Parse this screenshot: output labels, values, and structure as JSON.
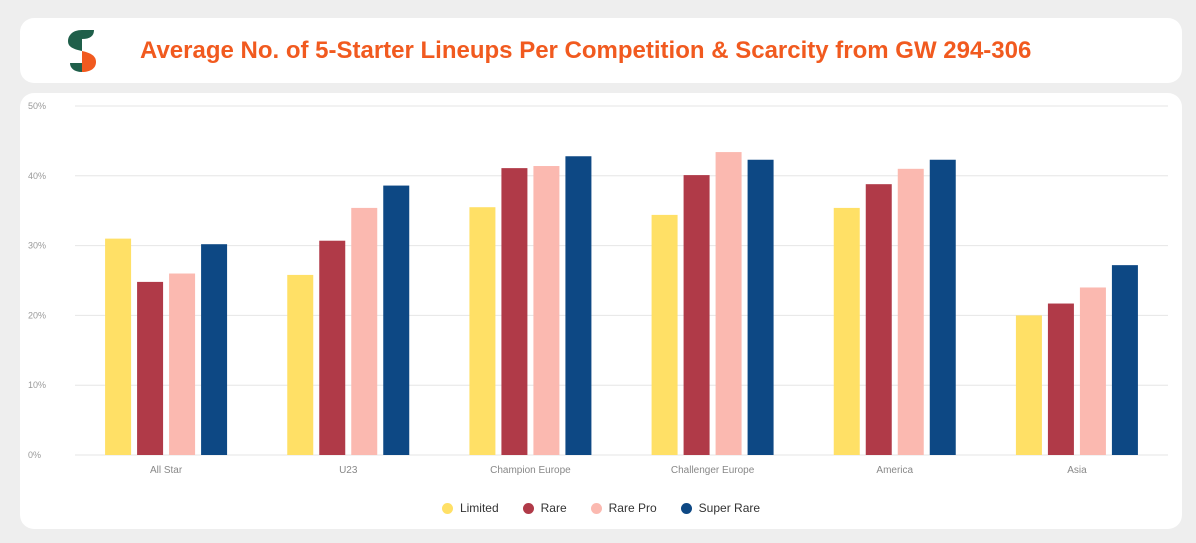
{
  "header": {
    "title": "Average No. of 5-Starter Lineups Per Competition & Scarcity from GW 294-306"
  },
  "colors": {
    "title": "#f15a1f",
    "logo_green": "#1f5f4a",
    "logo_orange": "#f15a1f"
  },
  "chart_data": {
    "type": "bar",
    "title": "Average No. of 5-Starter Lineups Per Competition & Scarcity from GW 294-306",
    "xlabel": "",
    "ylabel": "",
    "ylim": [
      0,
      50
    ],
    "yticks": [
      "0%",
      "10%",
      "20%",
      "30%",
      "40%",
      "50%"
    ],
    "grid": true,
    "legend_position": "bottom",
    "categories": [
      "All Star",
      "U23",
      "Champion Europe",
      "Challenger Europe",
      "America",
      "Asia"
    ],
    "series": [
      {
        "name": "Limited",
        "color": "#ffe066",
        "values": [
          31.0,
          25.8,
          35.5,
          34.4,
          35.4,
          20.0
        ]
      },
      {
        "name": "Rare",
        "color": "#b03a48",
        "values": [
          24.8,
          30.7,
          41.1,
          40.1,
          38.8,
          21.7
        ]
      },
      {
        "name": "Rare Pro",
        "color": "#fbb9b0",
        "values": [
          26.0,
          35.4,
          41.4,
          43.4,
          41.0,
          24.0
        ]
      },
      {
        "name": "Super Rare",
        "color": "#0d4884",
        "values": [
          30.2,
          38.6,
          42.8,
          42.3,
          42.3,
          27.2
        ]
      }
    ]
  }
}
